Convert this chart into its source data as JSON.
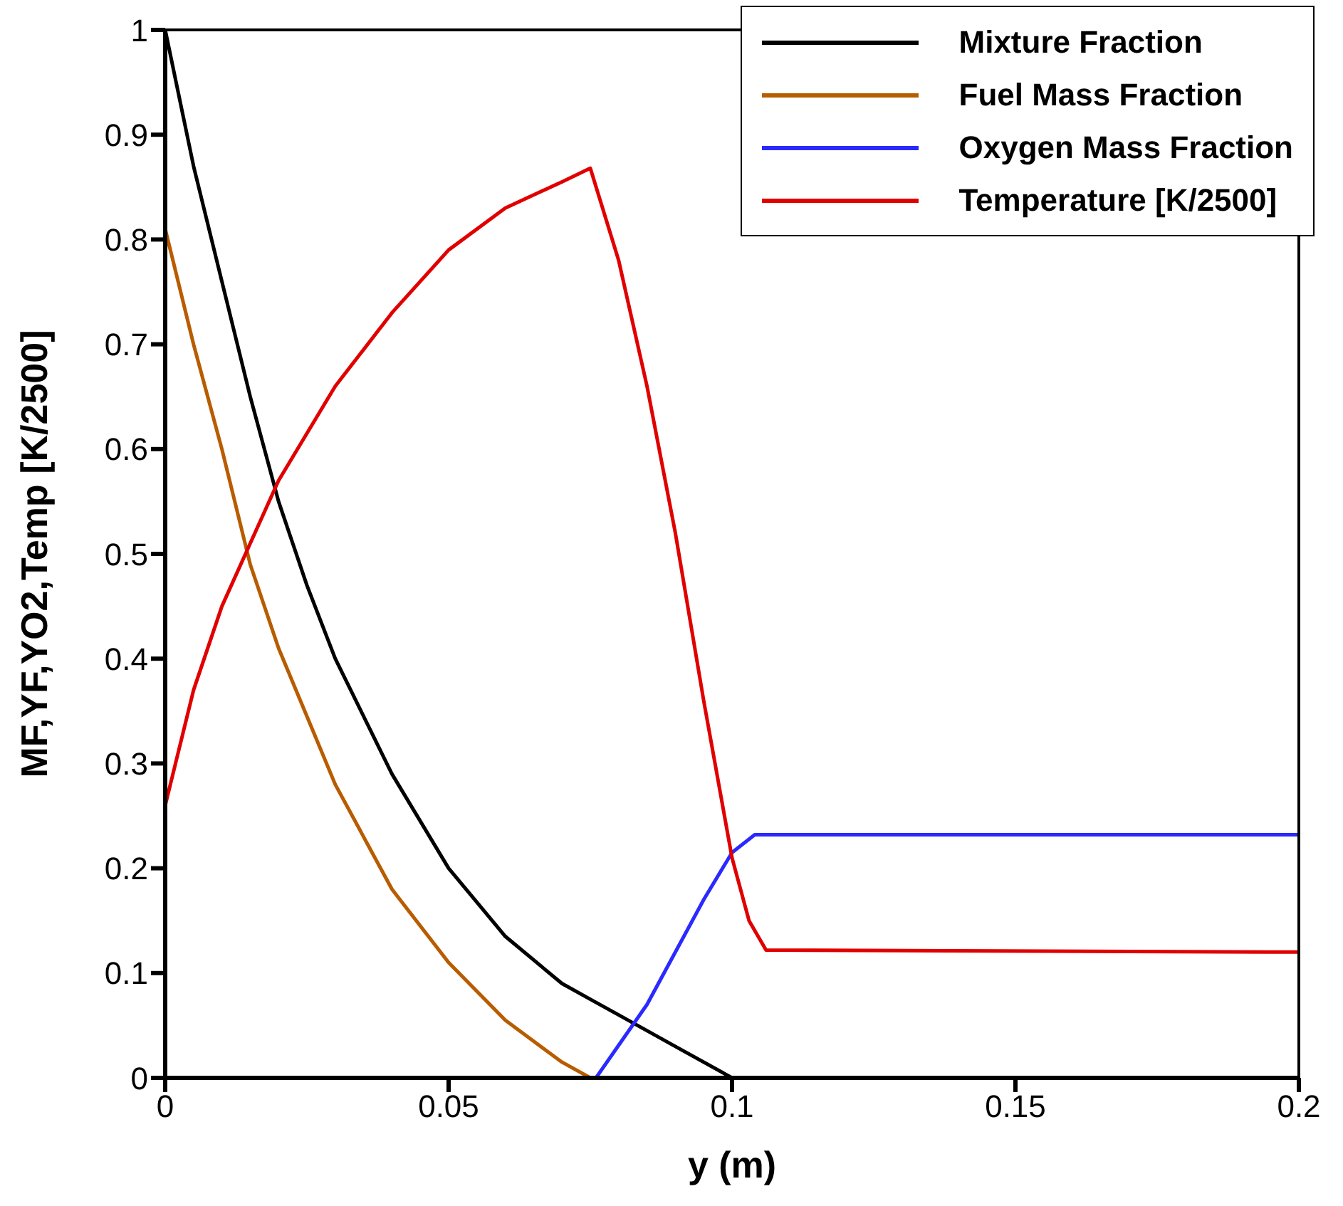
{
  "chart_data": {
    "type": "line",
    "xlabel": "y (m)",
    "ylabel": "MF,YF,YO2,Temp [K/2500]",
    "xlim": [
      0,
      0.2
    ],
    "xticks": [
      0,
      0.05,
      0.1,
      0.15,
      0.2
    ],
    "ylim": [
      0,
      1
    ],
    "yticks": [
      0,
      0.1,
      0.2,
      0.3,
      0.4,
      0.5,
      0.6,
      0.7,
      0.8,
      0.9,
      1
    ],
    "legend": "top right",
    "marker": "none",
    "line_style": "solid",
    "series": [
      {
        "name": "Mixture Fraction",
        "color": "#000000",
        "x": [
          0,
          0.005,
          0.01,
          0.015,
          0.02,
          0.025,
          0.03,
          0.04,
          0.05,
          0.06,
          0.07,
          0.075,
          0.08,
          0.09,
          0.1
        ],
        "values": [
          1.0,
          0.87,
          0.76,
          0.65,
          0.55,
          0.47,
          0.4,
          0.29,
          0.2,
          0.135,
          0.09,
          0.075,
          0.06,
          0.03,
          0
        ]
      },
      {
        "name": "Fuel Mass Fraction",
        "color": "#b85c00",
        "x": [
          0,
          0.005,
          0.01,
          0.015,
          0.02,
          0.03,
          0.04,
          0.05,
          0.06,
          0.07,
          0.075
        ],
        "values": [
          0.81,
          0.7,
          0.6,
          0.49,
          0.41,
          0.28,
          0.18,
          0.11,
          0.055,
          0.015,
          0
        ]
      },
      {
        "name": "Oxygen Mass Fraction",
        "color": "#2a2aff",
        "x": [
          0.076,
          0.085,
          0.095,
          0.1,
          0.104,
          0.2
        ],
        "values": [
          0,
          0.07,
          0.17,
          0.215,
          0.232,
          0.232
        ]
      },
      {
        "name": "Temperature [K/2500]",
        "color": "#e00000",
        "x": [
          0,
          0.005,
          0.01,
          0.015,
          0.02,
          0.03,
          0.04,
          0.05,
          0.06,
          0.07,
          0.075,
          0.08,
          0.085,
          0.09,
          0.095,
          0.1,
          0.103,
          0.106,
          0.2
        ],
        "values": [
          0.26,
          0.37,
          0.45,
          0.51,
          0.57,
          0.66,
          0.73,
          0.79,
          0.83,
          0.855,
          0.868,
          0.78,
          0.66,
          0.52,
          0.36,
          0.21,
          0.15,
          0.122,
          0.12
        ]
      }
    ]
  }
}
